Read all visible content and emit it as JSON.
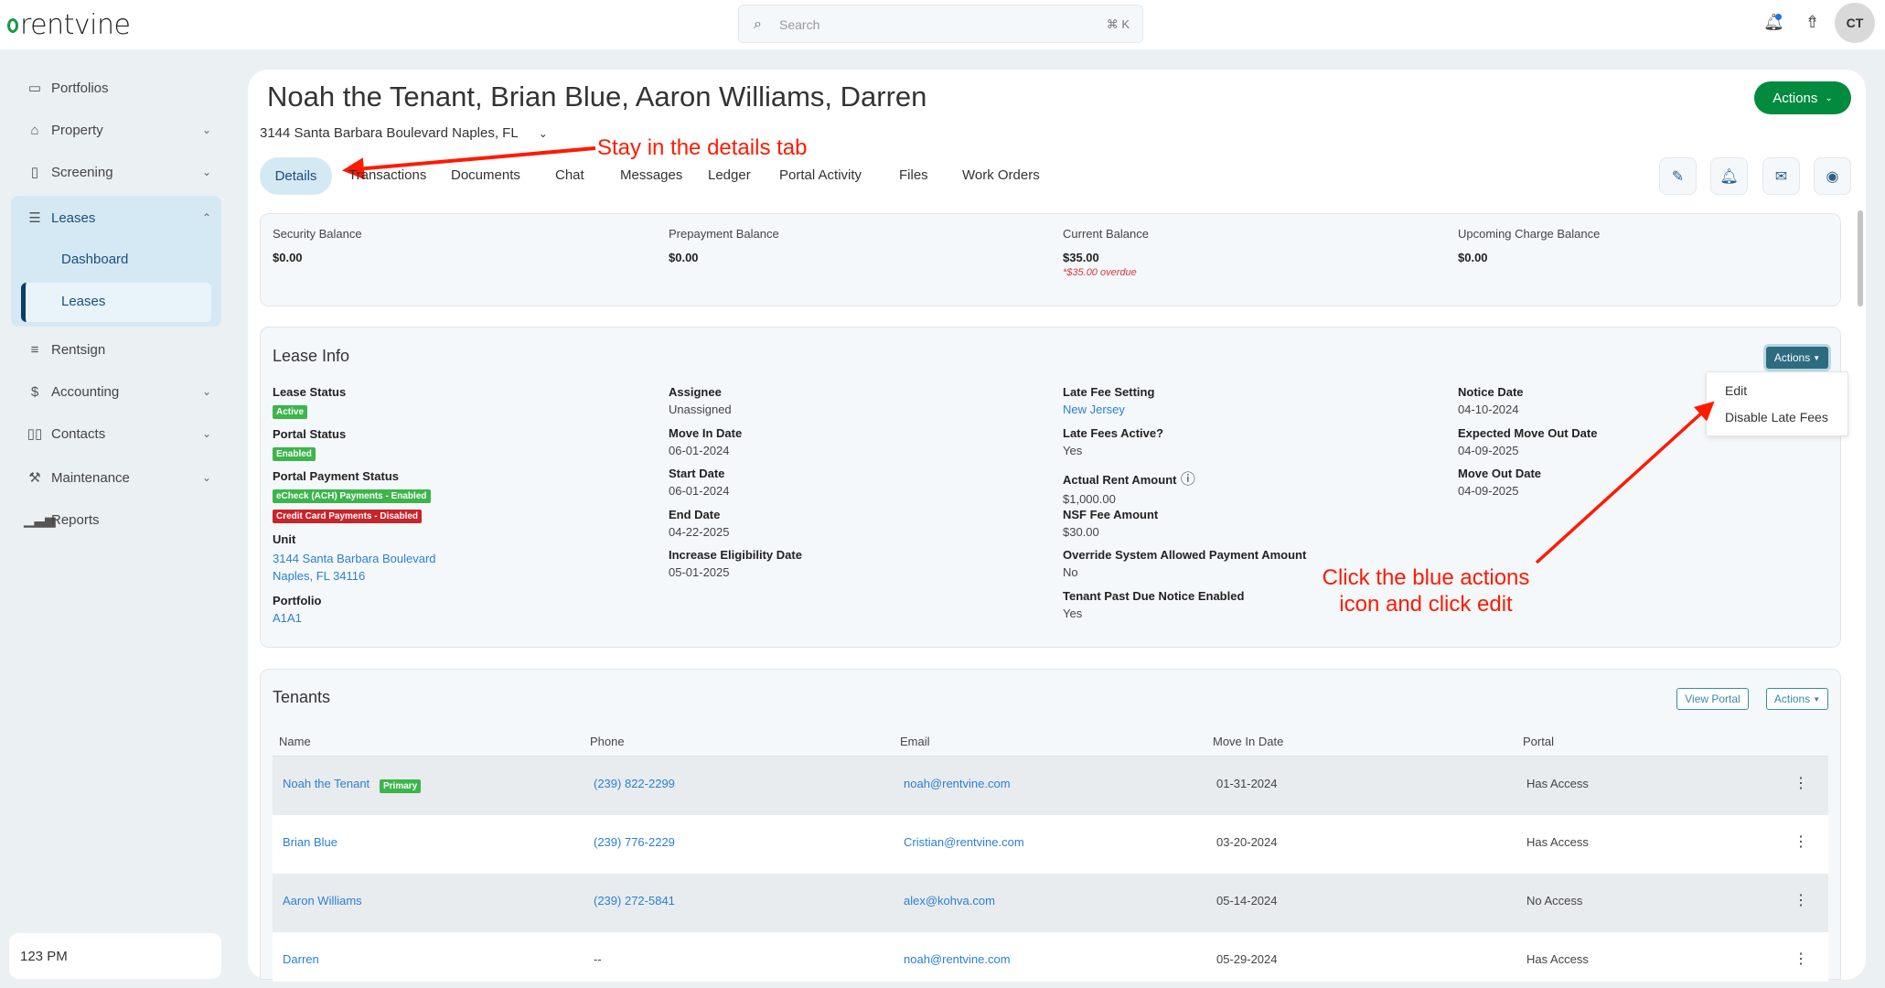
{
  "app": {
    "logo": "rentvine",
    "search_placeholder": "Search",
    "search_shortcut": "⌘ K",
    "avatar": "CT"
  },
  "sidebar": {
    "items": [
      {
        "label": "Portfolios",
        "icon": "folder-icon"
      },
      {
        "label": "Property",
        "icon": "building-icon"
      },
      {
        "label": "Screening",
        "icon": "screening-icon"
      },
      {
        "label": "Leases",
        "icon": "clipboard-icon"
      },
      {
        "label": "Rentsign",
        "icon": "sign-icon"
      },
      {
        "label": "Accounting",
        "icon": "dollar-icon"
      },
      {
        "label": "Contacts",
        "icon": "book-icon"
      },
      {
        "label": "Maintenance",
        "icon": "wrench-icon"
      },
      {
        "label": "Reports",
        "icon": "chart-icon"
      }
    ],
    "leases_sub": [
      "Dashboard",
      "Leases"
    ],
    "footer": "123 PM"
  },
  "header": {
    "title": "Noah the Tenant, Brian Blue, Aaron Williams, Darren",
    "address": "3144 Santa Barbara Boulevard Naples, FL",
    "actions": "Actions"
  },
  "tabs": [
    "Details",
    "Transactions",
    "Documents",
    "Chat",
    "Messages",
    "Ledger",
    "Portal Activity",
    "Files",
    "Work Orders"
  ],
  "balances": [
    {
      "label": "Security Balance",
      "value": "$0.00"
    },
    {
      "label": "Prepayment Balance",
      "value": "$0.00"
    },
    {
      "label": "Current Balance",
      "value": "$35.00",
      "note": "*$35.00 overdue"
    },
    {
      "label": "Upcoming Charge Balance",
      "value": "$0.00"
    }
  ],
  "lease_info": {
    "title": "Lease Info",
    "actions": "Actions",
    "menu": [
      "Edit",
      "Disable Late Fees"
    ],
    "col1": {
      "lease_status": "Lease Status",
      "active": "Active",
      "portal_status": "Portal Status",
      "enabled": "Enabled",
      "payment_status": "Portal Payment Status",
      "echeck": "eCheck (ACH) Payments - Enabled",
      "cc": "Credit Card Payments - Disabled",
      "unit": "Unit",
      "unit_line1": "3144 Santa Barbara Boulevard",
      "unit_line2": "Naples, FL 34116",
      "portfolio": "Portfolio",
      "portfolio_value": "A1A1"
    },
    "col2": [
      {
        "label": "Assignee",
        "value": "Unassigned"
      },
      {
        "label": "Move In Date",
        "value": "06-01-2024"
      },
      {
        "label": "Start Date",
        "value": "06-01-2024"
      },
      {
        "label": "End Date",
        "value": "04-22-2025"
      },
      {
        "label": "Increase Eligibility Date",
        "value": "05-01-2025"
      }
    ],
    "col3": [
      {
        "label": "Late Fee Setting",
        "value": "New Jersey"
      },
      {
        "label": "Late Fees Active?",
        "value": "Yes"
      },
      {
        "label": "Actual Rent Amount",
        "value": "$1,000.00"
      },
      {
        "label": "NSF Fee Amount",
        "value": "$30.00"
      },
      {
        "label": "Override System Allowed Payment Amount",
        "value": "No"
      },
      {
        "label": "Tenant Past Due Notice Enabled",
        "value": "Yes"
      }
    ],
    "col4": [
      {
        "label": "Notice Date",
        "value": "04-10-2024"
      },
      {
        "label": "Expected Move Out Date",
        "value": "04-09-2025"
      },
      {
        "label": "Move Out Date",
        "value": "04-09-2025"
      }
    ]
  },
  "tenants": {
    "title": "Tenants",
    "view_portal": "View Portal",
    "actions": "Actions",
    "primary": "Primary",
    "columns": [
      "Name",
      "Phone",
      "Email",
      "Move In Date",
      "Portal"
    ],
    "rows": [
      [
        "Noah the Tenant",
        "(239) 822-2299",
        "noah@rentvine.com",
        "01-31-2024",
        "Has Access"
      ],
      [
        "Brian Blue",
        "(239) 776-2229",
        "Cristian@rentvine.com",
        "03-20-2024",
        "Has Access"
      ],
      [
        "Aaron Williams",
        "(239) 272-5841",
        "alex@kohva.com",
        "05-14-2024",
        "No Access"
      ],
      [
        "Darren",
        "--",
        "noah@rentvine.com",
        "05-29-2024",
        "Has Access"
      ]
    ]
  },
  "annotations": {
    "a1": "Stay in the details tab",
    "a2_line1": "Click the blue actions",
    "a2_line2": "icon and click edit"
  },
  "colors": {
    "brand_green": "#028a3e",
    "link": "#2a7fd4",
    "actions_teal": "#2c6b80",
    "annotation": "#ff1a00"
  }
}
